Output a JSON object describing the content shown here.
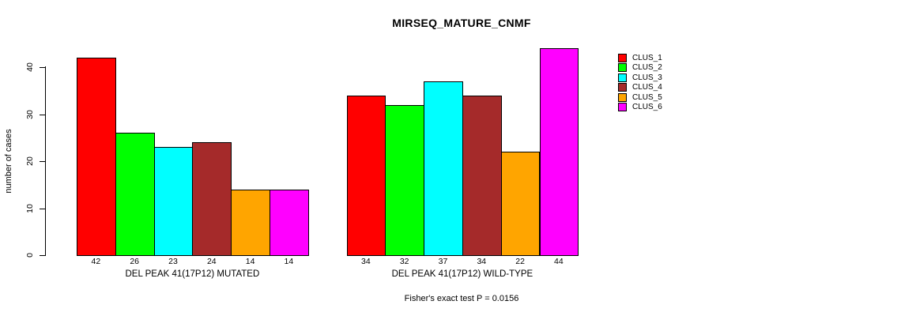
{
  "title": "MIRSEQ_MATURE_CNMF",
  "y_axis": {
    "label": "number of cases"
  },
  "footer": "Fisher's exact test P = 0.0156",
  "legend": {
    "items": [
      {
        "label": "CLUS_1",
        "color": "#FF0000"
      },
      {
        "label": "CLUS_2",
        "color": "#00FF00"
      },
      {
        "label": "CLUS_3",
        "color": "#00FFFF"
      },
      {
        "label": "CLUS_4",
        "color": "#A52A2A"
      },
      {
        "label": "CLUS_5",
        "color": "#FFA500"
      },
      {
        "label": "CLUS_6",
        "color": "#FF00FF"
      }
    ]
  },
  "chart_data": {
    "type": "bar",
    "title": "MIRSEQ_MATURE_CNMF",
    "ylabel": "number of cases",
    "xlabel": "",
    "ylim": [
      0,
      44
    ],
    "yticks": [
      0,
      10,
      20,
      30,
      40
    ],
    "grid": false,
    "legend_position": "right",
    "bar_value_labels": true,
    "categories": [
      "DEL PEAK 41(17P12) MUTATED",
      "DEL PEAK 41(17P12) WILD-TYPE"
    ],
    "series": [
      {
        "name": "CLUS_1",
        "color": "#FF0000",
        "values": [
          42,
          34
        ]
      },
      {
        "name": "CLUS_2",
        "color": "#00FF00",
        "values": [
          26,
          32
        ]
      },
      {
        "name": "CLUS_3",
        "color": "#00FFFF",
        "values": [
          23,
          37
        ]
      },
      {
        "name": "CLUS_4",
        "color": "#A52A2A",
        "values": [
          24,
          34
        ]
      },
      {
        "name": "CLUS_5",
        "color": "#FFA500",
        "values": [
          14,
          22
        ]
      },
      {
        "name": "CLUS_6",
        "color": "#FF00FF",
        "values": [
          14,
          44
        ]
      }
    ],
    "annotation": "Fisher's exact test P = 0.0156"
  }
}
